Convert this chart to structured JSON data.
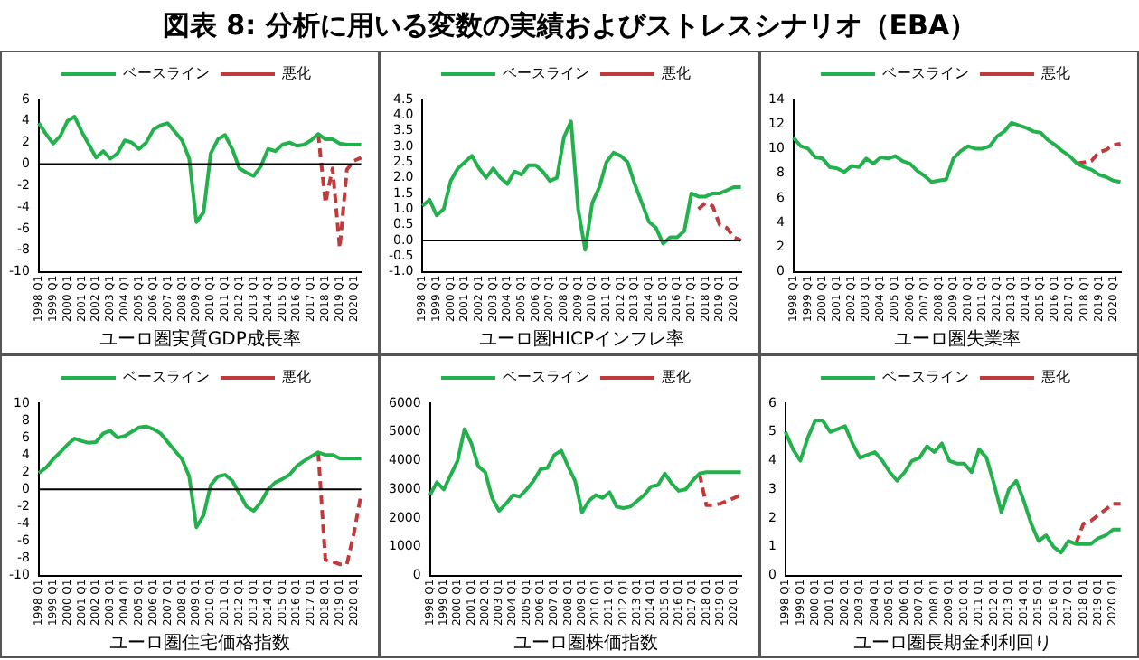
{
  "chart_data": [
    {
      "type": "line",
      "title": "図表 8: 分析に用いる変数の実績およびストレスシナリオ（EBA）",
      "xlabel": "ユーロ圏実質GDP成長率",
      "categories": [
        "1998 Q1",
        null,
        "1999 Q1",
        null,
        "2000 Q1",
        null,
        "2001 Q1",
        null,
        "2002 Q1",
        null,
        "2003 Q1",
        null,
        "2004 Q1",
        null,
        "2005 Q1",
        null,
        "2006 Q1",
        null,
        "2007 Q1",
        null,
        "2008 Q1",
        null,
        "2009 Q1",
        null,
        "2010 Q1",
        null,
        "2011 Q1",
        null,
        "2012 Q1",
        null,
        "2013 Q1",
        null,
        "2014 Q1",
        null,
        "2015 Q1",
        null,
        "2016 Q1",
        null,
        "2017 Q1",
        null,
        "2018 Q1",
        null,
        "2019 Q1",
        null,
        "2020 Q1",
        null
      ],
      "series": [
        {
          "name": "ベースライン",
          "color": "#22b14c",
          "line_style": "solid",
          "values": [
            3.8,
            2.8,
            1.9,
            2.6,
            4.0,
            4.4,
            3.0,
            1.8,
            0.6,
            1.2,
            0.5,
            1.0,
            2.2,
            2.0,
            1.4,
            2.0,
            3.2,
            3.6,
            3.8,
            3.0,
            2.2,
            0.5,
            -5.4,
            -4.5,
            1.0,
            2.3,
            2.7,
            1.4,
            -0.4,
            -0.8,
            -1.1,
            -0.2,
            1.4,
            1.2,
            1.8,
            2.0,
            1.7,
            1.8,
            2.2,
            2.8,
            2.3,
            2.3,
            1.9,
            1.8,
            1.8,
            1.8
          ]
        },
        {
          "name": "悪化",
          "color": "#c0393b",
          "line_style": "dashed",
          "values": [
            null,
            null,
            null,
            null,
            null,
            null,
            null,
            null,
            null,
            null,
            null,
            null,
            null,
            null,
            null,
            null,
            null,
            null,
            null,
            null,
            null,
            null,
            null,
            null,
            null,
            null,
            null,
            null,
            null,
            null,
            null,
            null,
            null,
            null,
            null,
            null,
            null,
            null,
            null,
            2.8,
            -3.6,
            -0.4,
            -7.8,
            -0.5,
            0.3,
            0.6
          ]
        }
      ],
      "ylim": [
        -10,
        6
      ],
      "yticks": [
        -10,
        -8,
        -6,
        -4,
        -2,
        0,
        2,
        4,
        6
      ],
      "ref_lines": [
        {
          "axis": "y",
          "value": 0,
          "color": "#000000"
        }
      ],
      "legend": "top",
      "grid": false,
      "marker": "none"
    },
    {
      "type": "line",
      "xlabel": "ユーロ圏HICPインフレ率",
      "categories": [
        "1998 Q1",
        null,
        "1999 Q1",
        null,
        "2000 Q1",
        null,
        "2001 Q1",
        null,
        "2002 Q1",
        null,
        "2003 Q1",
        null,
        "2004 Q1",
        null,
        "2005 Q1",
        null,
        "2006 Q1",
        null,
        "2007 Q1",
        null,
        "2008 Q1",
        null,
        "2009 Q1",
        null,
        "2010 Q1",
        null,
        "2011 Q1",
        null,
        "2012 Q1",
        null,
        "2013 Q1",
        null,
        "2014 Q1",
        null,
        "2015 Q1",
        null,
        "2016 Q1",
        null,
        "2017 Q1",
        null,
        "2018 Q1",
        null,
        "2019 Q1",
        null,
        "2020 Q1",
        null
      ],
      "series": [
        {
          "name": "ベースライン",
          "color": "#22b14c",
          "line_style": "solid",
          "values": [
            1.1,
            1.3,
            0.8,
            1.0,
            1.9,
            2.3,
            2.5,
            2.7,
            2.3,
            2.0,
            2.3,
            2.0,
            1.8,
            2.2,
            2.1,
            2.4,
            2.4,
            2.2,
            1.9,
            2.0,
            3.3,
            3.8,
            1.0,
            -0.3,
            1.2,
            1.7,
            2.5,
            2.8,
            2.7,
            2.5,
            1.8,
            1.2,
            0.6,
            0.4,
            -0.1,
            0.1,
            0.1,
            0.3,
            1.5,
            1.4,
            1.4,
            1.5,
            1.5,
            1.6,
            1.7,
            1.7
          ]
        },
        {
          "name": "悪化",
          "color": "#c0393b",
          "line_style": "dashed",
          "values": [
            null,
            null,
            null,
            null,
            null,
            null,
            null,
            null,
            null,
            null,
            null,
            null,
            null,
            null,
            null,
            null,
            null,
            null,
            null,
            null,
            null,
            null,
            null,
            null,
            null,
            null,
            null,
            null,
            null,
            null,
            null,
            null,
            null,
            null,
            null,
            null,
            null,
            null,
            null,
            1.0,
            1.2,
            1.1,
            0.5,
            0.4,
            0.1,
            0.0
          ]
        }
      ],
      "ylim": [
        -1,
        4.5
      ],
      "yticks": [
        {
          "value": -1,
          "label": "-1.0"
        },
        {
          "value": -0.5,
          "label": "-0.5"
        },
        {
          "value": 0,
          "label": "0.0"
        },
        {
          "value": 0.5,
          "label": "0.5"
        },
        {
          "value": 1,
          "label": "1.0"
        },
        {
          "value": 1.5,
          "label": "1.5"
        },
        {
          "value": 2,
          "label": "2.0"
        },
        {
          "value": 2.5,
          "label": "2.5"
        },
        {
          "value": 3,
          "label": "3.0"
        },
        {
          "value": 3.5,
          "label": "3.5"
        },
        {
          "value": 4,
          "label": "4.0"
        },
        {
          "value": 4.5,
          "label": "4.5"
        }
      ],
      "ref_lines": [
        {
          "axis": "y",
          "value": 0,
          "color": "#000000"
        }
      ],
      "legend": "top",
      "grid": false,
      "marker": "none"
    },
    {
      "type": "line",
      "xlabel": "ユーロ圏失業率",
      "categories": [
        "1998 Q1",
        null,
        "1999 Q1",
        null,
        "2000 Q1",
        null,
        "2001 Q1",
        null,
        "2002 Q1",
        null,
        "2003 Q1",
        null,
        "2004 Q1",
        null,
        "2005 Q1",
        null,
        "2006 Q1",
        null,
        "2007 Q1",
        null,
        "2008 Q1",
        null,
        "2009 Q1",
        null,
        "2010 Q1",
        null,
        "2011 Q1",
        null,
        "2012 Q1",
        null,
        "2013 Q1",
        null,
        "2014 Q1",
        null,
        "2015 Q1",
        null,
        "2016 Q1",
        null,
        "2017 Q1",
        null,
        "2018 Q1",
        null,
        "2019 Q1",
        null,
        "2020 Q1",
        null
      ],
      "series": [
        {
          "name": "ベースライン",
          "color": "#22b14c",
          "line_style": "solid",
          "values": [
            10.9,
            10.2,
            10.0,
            9.3,
            9.2,
            8.5,
            8.4,
            8.1,
            8.6,
            8.5,
            9.2,
            8.8,
            9.3,
            9.2,
            9.4,
            9.0,
            8.8,
            8.2,
            7.8,
            7.3,
            7.4,
            7.5,
            9.2,
            9.8,
            10.2,
            10.0,
            10.0,
            10.2,
            11.0,
            11.4,
            12.1,
            11.9,
            11.7,
            11.4,
            11.3,
            10.7,
            10.3,
            9.8,
            9.4,
            8.8,
            8.5,
            8.3,
            7.9,
            7.7,
            7.4,
            7.3
          ]
        },
        {
          "name": "悪化",
          "color": "#c0393b",
          "line_style": "dashed",
          "values": [
            null,
            null,
            null,
            null,
            null,
            null,
            null,
            null,
            null,
            null,
            null,
            null,
            null,
            null,
            null,
            null,
            null,
            null,
            null,
            null,
            null,
            null,
            null,
            null,
            null,
            null,
            null,
            null,
            null,
            null,
            null,
            null,
            null,
            null,
            null,
            null,
            null,
            null,
            null,
            8.8,
            8.9,
            9.0,
            9.7,
            9.9,
            10.3,
            10.4
          ]
        }
      ],
      "ylim": [
        0,
        14
      ],
      "yticks": [
        0,
        2,
        4,
        6,
        8,
        10,
        12,
        14
      ],
      "legend": "top",
      "grid": false,
      "marker": "none"
    },
    {
      "type": "line",
      "xlabel": "ユーロ圏住宅価格指数",
      "categories": [
        "1998 Q1",
        null,
        "1999 Q1",
        null,
        "2000 Q1",
        null,
        "2001 Q1",
        null,
        "2002 Q1",
        null,
        "2003 Q1",
        null,
        "2004 Q1",
        null,
        "2005 Q1",
        null,
        "2006 Q1",
        null,
        "2007 Q1",
        null,
        "2008 Q1",
        null,
        "2009 Q1",
        null,
        "2010 Q1",
        null,
        "2011 Q1",
        null,
        "2012 Q1",
        null,
        "2013 Q1",
        null,
        "2014 Q1",
        null,
        "2015 Q1",
        null,
        "2016 Q1",
        null,
        "2017 Q1",
        null,
        "2018 Q1",
        null,
        "2019 Q1",
        null,
        "2020 Q1",
        null
      ],
      "series": [
        {
          "name": "ベースライン",
          "color": "#22b14c",
          "line_style": "solid",
          "values": [
            1.9,
            2.5,
            3.5,
            4.3,
            5.2,
            5.9,
            5.6,
            5.4,
            5.5,
            6.5,
            6.8,
            6.0,
            6.2,
            6.7,
            7.2,
            7.3,
            7.0,
            6.5,
            5.5,
            4.5,
            3.5,
            1.5,
            -4.4,
            -3.0,
            0.5,
            1.5,
            1.7,
            1.0,
            -0.5,
            -2.0,
            -2.5,
            -1.5,
            0.0,
            0.8,
            1.2,
            1.7,
            2.7,
            3.3,
            3.8,
            4.3,
            4.0,
            4.0,
            3.6,
            3.6,
            3.6,
            3.6
          ]
        },
        {
          "name": "悪化",
          "color": "#c0393b",
          "line_style": "dashed",
          "values": [
            null,
            null,
            null,
            null,
            null,
            null,
            null,
            null,
            null,
            null,
            null,
            null,
            null,
            null,
            null,
            null,
            null,
            null,
            null,
            null,
            null,
            null,
            null,
            null,
            null,
            null,
            null,
            null,
            null,
            null,
            null,
            null,
            null,
            null,
            null,
            null,
            null,
            null,
            null,
            4.3,
            -8.2,
            -8.4,
            -8.7,
            -8.7,
            -5.0,
            -0.5
          ]
        }
      ],
      "ylim": [
        -10,
        10
      ],
      "yticks": [
        -10,
        -8,
        -6,
        -4,
        -2,
        0,
        2,
        4,
        6,
        8,
        10
      ],
      "ref_lines": [
        {
          "axis": "y",
          "value": 0,
          "color": "#000000"
        }
      ],
      "legend": "top",
      "grid": false,
      "marker": "none"
    },
    {
      "type": "line",
      "xlabel": "ユーロ圏株価指数",
      "categories": [
        "1998 Q1",
        null,
        "1999 Q1",
        null,
        "2000 Q1",
        null,
        "2001 Q1",
        null,
        "2002 Q1",
        null,
        "2003 Q1",
        null,
        "2004 Q1",
        null,
        "2005 Q1",
        null,
        "2006 Q1",
        null,
        "2007 Q1",
        null,
        "2008 Q1",
        null,
        "2009 Q1",
        null,
        "2010 Q1",
        null,
        "2011 Q1",
        null,
        "2012 Q1",
        null,
        "2013 Q1",
        null,
        "2014 Q1",
        null,
        "2015 Q1",
        null,
        "2016 Q1",
        null,
        "2017 Q1",
        null,
        "2018 Q1",
        null,
        "2019 Q1",
        null,
        "2020 Q1",
        null
      ],
      "series": [
        {
          "name": "ベースライン",
          "color": "#22b14c",
          "line_style": "solid",
          "values": [
            2800,
            3250,
            3000,
            3500,
            4000,
            5100,
            4600,
            3800,
            3600,
            2700,
            2250,
            2500,
            2800,
            2750,
            3000,
            3300,
            3700,
            3750,
            4200,
            4350,
            3800,
            3300,
            2200,
            2600,
            2800,
            2700,
            2900,
            2400,
            2350,
            2400,
            2600,
            2800,
            3100,
            3150,
            3550,
            3200,
            2950,
            3000,
            3300,
            3550,
            3600,
            3600,
            3600,
            3600,
            3600,
            3600
          ]
        },
        {
          "name": "悪化",
          "color": "#c0393b",
          "line_style": "dashed",
          "values": [
            null,
            null,
            null,
            null,
            null,
            null,
            null,
            null,
            null,
            null,
            null,
            null,
            null,
            null,
            null,
            null,
            null,
            null,
            null,
            null,
            null,
            null,
            null,
            null,
            null,
            null,
            null,
            null,
            null,
            null,
            null,
            null,
            null,
            null,
            null,
            null,
            null,
            null,
            null,
            3550,
            2450,
            2450,
            2500,
            2600,
            2700,
            2800
          ]
        }
      ],
      "ylim": [
        0,
        6000
      ],
      "yticks": [
        0,
        1000,
        2000,
        3000,
        4000,
        5000,
        6000
      ],
      "legend": "top",
      "grid": false,
      "marker": "none"
    },
    {
      "type": "line",
      "xlabel": "ユーロ圏長期金利利回り",
      "categories": [
        "1998 Q1",
        null,
        "1999 Q1",
        null,
        "2000 Q1",
        null,
        "2001 Q1",
        null,
        "2002 Q1",
        null,
        "2003 Q1",
        null,
        "2004 Q1",
        null,
        "2005 Q1",
        null,
        "2006 Q1",
        null,
        "2007 Q1",
        null,
        "2008 Q1",
        null,
        "2009 Q1",
        null,
        "2010 Q1",
        null,
        "2011 Q1",
        null,
        "2012 Q1",
        null,
        "2013 Q1",
        null,
        "2014 Q1",
        null,
        "2015 Q1",
        null,
        "2016 Q1",
        null,
        "2017 Q1",
        null,
        "2018 Q1",
        null,
        "2019 Q1",
        null,
        "2020 Q1",
        null
      ],
      "series": [
        {
          "name": "ベースライン",
          "color": "#22b14c",
          "line_style": "solid",
          "values": [
            5.0,
            4.4,
            4.0,
            4.8,
            5.4,
            5.4,
            5.0,
            5.1,
            5.2,
            4.6,
            4.1,
            4.2,
            4.3,
            4.0,
            3.6,
            3.3,
            3.6,
            4.0,
            4.1,
            4.5,
            4.3,
            4.6,
            4.0,
            3.9,
            3.9,
            3.6,
            4.4,
            4.1,
            3.2,
            2.2,
            3.0,
            3.3,
            2.6,
            1.8,
            1.2,
            1.4,
            1.0,
            0.8,
            1.2,
            1.1,
            1.1,
            1.1,
            1.3,
            1.4,
            1.6,
            1.6
          ]
        },
        {
          "name": "悪化",
          "color": "#c0393b",
          "line_style": "dashed",
          "values": [
            null,
            null,
            null,
            null,
            null,
            null,
            null,
            null,
            null,
            null,
            null,
            null,
            null,
            null,
            null,
            null,
            null,
            null,
            null,
            null,
            null,
            null,
            null,
            null,
            null,
            null,
            null,
            null,
            null,
            null,
            null,
            null,
            null,
            null,
            null,
            null,
            null,
            null,
            null,
            1.1,
            1.8,
            1.9,
            2.1,
            2.3,
            2.5,
            2.5
          ]
        }
      ],
      "ylim": [
        0,
        6
      ],
      "yticks": [
        0,
        1,
        2,
        3,
        4,
        5,
        6
      ],
      "legend": "top",
      "grid": false,
      "marker": "none"
    }
  ]
}
